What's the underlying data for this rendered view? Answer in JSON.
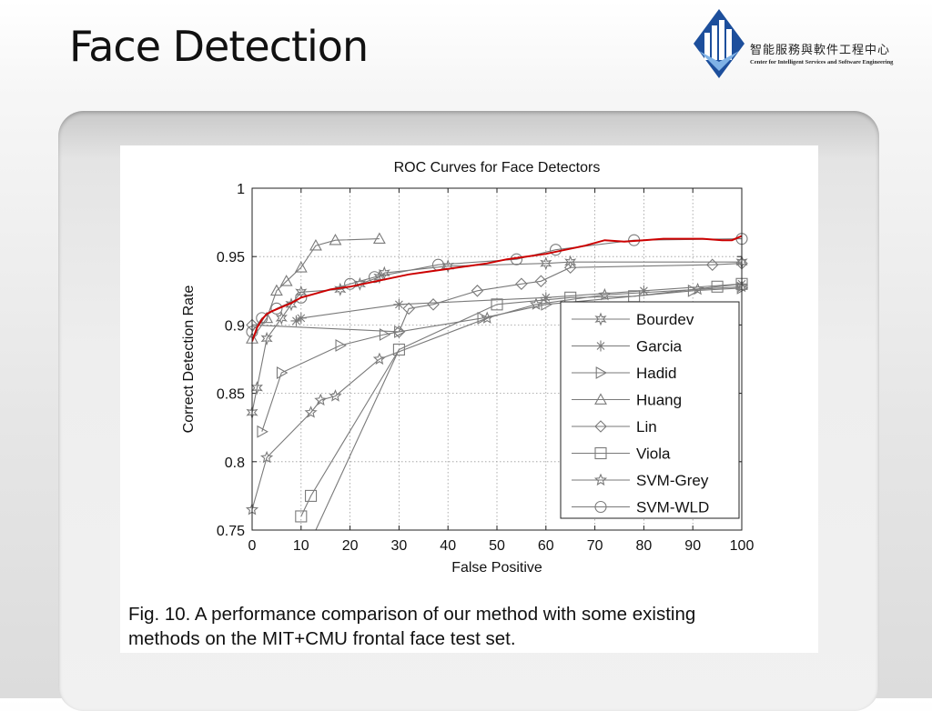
{
  "slide": {
    "title": "Face Detection"
  },
  "logo": {
    "chinese_text": "智能服務與軟件工程中心",
    "english_text": "Center for Intelligent Services and Software Engineering"
  },
  "caption": {
    "line1": "Fig. 10. A performance comparison of our method with some existing",
    "line2": "methods on the MIT+CMU frontal face test set."
  },
  "chart_data": {
    "type": "line",
    "title": "ROC Curves for Face Detectors",
    "xlabel": "False Positive",
    "ylabel": "Correct Detection Rate",
    "xlim": [
      0,
      100
    ],
    "ylim": [
      0.75,
      1
    ],
    "xticks": [
      "0",
      "10",
      "20",
      "30",
      "40",
      "50",
      "60",
      "70",
      "80",
      "90",
      "100"
    ],
    "yticks": [
      "0.75",
      "0.8",
      "0.85",
      "0.9",
      "0.95",
      "1"
    ],
    "grid": true,
    "legend_position": "lower-right",
    "series": [
      {
        "name": "Bourdev",
        "marker": "hexagram",
        "color": "#7a7a7a",
        "x": [
          0,
          1,
          3,
          6,
          8,
          10,
          18,
          22,
          26,
          27,
          40,
          60,
          65,
          100
        ],
        "y": [
          0.836,
          0.854,
          0.89,
          0.905,
          0.915,
          0.924,
          0.926,
          0.93,
          0.935,
          0.938,
          0.943,
          0.945,
          0.946,
          0.946
        ]
      },
      {
        "name": "Garcia",
        "marker": "asterisk",
        "color": "#7a7a7a",
        "x": [
          9,
          10,
          30,
          60,
          80,
          100
        ],
        "y": [
          0.903,
          0.905,
          0.915,
          0.92,
          0.925,
          0.93
        ]
      },
      {
        "name": "Hadid",
        "marker": "triangle-right",
        "color": "#7a7a7a",
        "x": [
          2,
          6,
          18,
          27,
          30,
          47,
          60,
          90,
          100
        ],
        "y": [
          0.822,
          0.865,
          0.885,
          0.893,
          0.895,
          0.905,
          0.915,
          0.925,
          0.927
        ]
      },
      {
        "name": "Huang",
        "marker": "triangle-up",
        "color": "#7a7a7a",
        "x": [
          0,
          3,
          5,
          7,
          10,
          13,
          17,
          26
        ],
        "y": [
          0.89,
          0.905,
          0.925,
          0.932,
          0.942,
          0.958,
          0.962,
          0.963
        ]
      },
      {
        "name": "Lin",
        "marker": "diamond",
        "color": "#7a7a7a",
        "x": [
          0,
          30,
          32,
          37,
          46,
          55,
          59,
          65,
          94,
          100
        ],
        "y": [
          0.9,
          0.895,
          0.912,
          0.915,
          0.925,
          0.93,
          0.932,
          0.942,
          0.944,
          0.945
        ]
      },
      {
        "name": "Viola",
        "marker": "square",
        "color": "#7a7a7a",
        "x": [
          10,
          12,
          30,
          50,
          65,
          78,
          95,
          100
        ],
        "y": [
          0.76,
          0.775,
          0.882,
          0.915,
          0.92,
          0.921,
          0.928,
          0.93
        ]
      },
      {
        "name": "SVM-Grey",
        "marker": "pentagram",
        "color": "#7a7a7a",
        "x": [
          0,
          3,
          12,
          14,
          17,
          26,
          48,
          58,
          72,
          91,
          100
        ],
        "y": [
          0.765,
          0.803,
          0.836,
          0.845,
          0.848,
          0.875,
          0.905,
          0.915,
          0.922,
          0.926,
          0.928
        ]
      },
      {
        "name": "SVM-WLD",
        "marker": "circle",
        "color": "#7a7a7a",
        "x": [
          0,
          2,
          5,
          10,
          20,
          25,
          38,
          54,
          62,
          78,
          100
        ],
        "y": [
          0.895,
          0.905,
          0.912,
          0.92,
          0.93,
          0.935,
          0.944,
          0.948,
          0.955,
          0.962,
          0.963
        ]
      }
    ],
    "highlight": {
      "color": "#cc0000",
      "x": [
        0,
        1,
        2,
        3,
        4,
        6,
        8,
        10,
        12,
        16,
        20,
        24,
        28,
        32,
        36,
        40,
        44,
        48,
        52,
        56,
        60,
        64,
        68,
        72,
        76,
        80,
        84,
        88,
        92,
        96,
        98,
        100
      ],
      "y": [
        0.888,
        0.898,
        0.904,
        0.908,
        0.91,
        0.913,
        0.916,
        0.92,
        0.922,
        0.926,
        0.928,
        0.931,
        0.934,
        0.937,
        0.939,
        0.941,
        0.943,
        0.945,
        0.948,
        0.95,
        0.952,
        0.955,
        0.958,
        0.962,
        0.961,
        0.962,
        0.963,
        0.963,
        0.963,
        0.962,
        0.962,
        0.965
      ]
    },
    "legend_x_reference": [
      "Bourdev",
      "Garcia",
      "Hadid",
      "Huang",
      "Lin",
      "Viola",
      "SVM-Grey",
      "SVM-WLD"
    ]
  }
}
